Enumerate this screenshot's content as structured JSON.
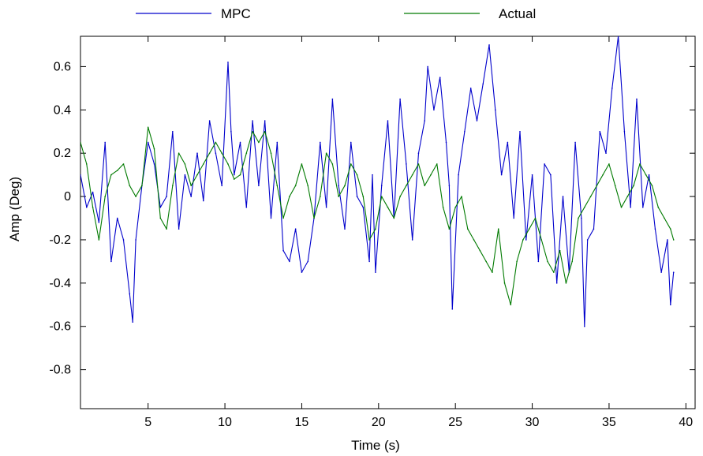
{
  "chart_data": {
    "type": "line",
    "xlabel": "Time (s)",
    "ylabel": "Amp (Deg)",
    "xlim": [
      0.6,
      40.6
    ],
    "ylim": [
      -0.98,
      0.74
    ],
    "x_ticks": [
      5,
      10,
      15,
      20,
      25,
      30,
      35,
      40
    ],
    "x_tick_labels": [
      "5",
      "10",
      "15",
      "20",
      "25",
      "30",
      "35",
      "40"
    ],
    "y_ticks": [
      -0.8,
      -0.6,
      -0.4,
      -0.2,
      0,
      0.2,
      0.4,
      0.6
    ],
    "y_tick_labels": [
      "-0.8",
      "-0.6",
      "-0.4",
      "-0.2",
      "0",
      "0.2",
      "0.4",
      "0.6"
    ],
    "grid": false,
    "legend_position": "top-outside",
    "series": [
      {
        "name": "MPC",
        "color": "#0000cc",
        "x": [
          0.6,
          1.0,
          1.4,
          1.8,
          2.2,
          2.6,
          3.0,
          3.4,
          3.8,
          4.0,
          4.2,
          4.6,
          5.0,
          5.4,
          5.8,
          6.2,
          6.6,
          7.0,
          7.4,
          7.8,
          8.2,
          8.6,
          9.0,
          9.4,
          9.8,
          10.2,
          10.4,
          10.6,
          11.0,
          11.4,
          11.8,
          12.2,
          12.6,
          13.0,
          13.4,
          13.8,
          14.2,
          14.6,
          15.0,
          15.4,
          15.8,
          16.2,
          16.6,
          17.0,
          17.4,
          17.8,
          18.2,
          18.6,
          19.0,
          19.4,
          19.6,
          19.8,
          20.2,
          20.6,
          21.0,
          21.4,
          21.8,
          22.2,
          22.6,
          23.0,
          23.2,
          23.6,
          24.0,
          24.4,
          24.6,
          24.8,
          25.2,
          25.6,
          26.0,
          26.4,
          26.8,
          27.2,
          27.6,
          28.0,
          28.4,
          28.8,
          29.2,
          29.6,
          30.0,
          30.4,
          30.8,
          31.2,
          31.6,
          32.0,
          32.4,
          32.8,
          33.2,
          33.4,
          33.6,
          34.0,
          34.4,
          34.8,
          35.2,
          35.6,
          36.0,
          36.4,
          36.8,
          37.2,
          37.6,
          38.0,
          38.4,
          38.8,
          39.0,
          39.2
        ],
        "values": [
          0.1,
          -0.05,
          0.02,
          -0.12,
          0.25,
          -0.3,
          -0.1,
          -0.2,
          -0.45,
          -0.58,
          -0.2,
          0.05,
          0.25,
          0.15,
          -0.05,
          0.0,
          0.3,
          -0.15,
          0.1,
          0.0,
          0.2,
          -0.02,
          0.35,
          0.2,
          0.05,
          0.62,
          0.3,
          0.1,
          0.25,
          -0.05,
          0.35,
          0.05,
          0.35,
          -0.1,
          0.25,
          -0.25,
          -0.3,
          -0.15,
          -0.35,
          -0.3,
          -0.1,
          0.25,
          -0.05,
          0.45,
          0.05,
          -0.15,
          0.25,
          0.0,
          -0.05,
          -0.3,
          0.1,
          -0.35,
          0.05,
          0.35,
          -0.1,
          0.45,
          0.15,
          -0.2,
          0.2,
          0.35,
          0.6,
          0.4,
          0.55,
          0.25,
          0.05,
          -0.52,
          0.1,
          0.3,
          0.5,
          0.35,
          0.52,
          0.7,
          0.4,
          0.1,
          0.25,
          -0.1,
          0.3,
          -0.2,
          0.1,
          -0.3,
          0.15,
          0.1,
          -0.4,
          0.0,
          -0.35,
          0.25,
          -0.1,
          -0.6,
          -0.2,
          -0.15,
          0.3,
          0.2,
          0.5,
          0.74,
          0.3,
          -0.05,
          0.45,
          -0.05,
          0.1,
          -0.15,
          -0.35,
          -0.2,
          -0.5,
          -0.35
        ]
      },
      {
        "name": "Actual",
        "color": "#007a00",
        "x": [
          0.6,
          1.0,
          1.4,
          1.8,
          2.2,
          2.6,
          3.0,
          3.4,
          3.8,
          4.2,
          4.6,
          5.0,
          5.4,
          5.8,
          6.2,
          6.6,
          7.0,
          7.4,
          7.8,
          8.2,
          8.6,
          9.0,
          9.4,
          9.8,
          10.2,
          10.6,
          11.0,
          11.4,
          11.8,
          12.2,
          12.6,
          13.0,
          13.4,
          13.8,
          14.2,
          14.6,
          15.0,
          15.4,
          15.8,
          16.2,
          16.6,
          17.0,
          17.4,
          17.8,
          18.2,
          18.6,
          19.0,
          19.4,
          19.8,
          20.2,
          20.6,
          21.0,
          21.4,
          21.8,
          22.2,
          22.6,
          23.0,
          23.4,
          23.8,
          24.2,
          24.6,
          25.0,
          25.4,
          25.8,
          26.2,
          26.6,
          27.0,
          27.4,
          27.8,
          28.2,
          28.6,
          29.0,
          29.4,
          29.8,
          30.2,
          30.6,
          31.0,
          31.4,
          31.8,
          32.2,
          32.6,
          33.0,
          33.4,
          33.8,
          34.2,
          34.6,
          35.0,
          35.4,
          35.8,
          36.2,
          36.6,
          37.0,
          37.4,
          37.8,
          38.2,
          38.6,
          39.0,
          39.2
        ],
        "values": [
          0.25,
          0.15,
          -0.05,
          -0.2,
          0.0,
          0.1,
          0.12,
          0.15,
          0.05,
          0.0,
          0.05,
          0.32,
          0.22,
          -0.1,
          -0.15,
          0.05,
          0.2,
          0.15,
          0.05,
          0.1,
          0.15,
          0.2,
          0.25,
          0.2,
          0.15,
          0.08,
          0.1,
          0.2,
          0.3,
          0.25,
          0.3,
          0.2,
          0.05,
          -0.1,
          0.0,
          0.05,
          0.15,
          0.05,
          -0.1,
          0.0,
          0.2,
          0.15,
          0.0,
          0.05,
          0.15,
          0.1,
          0.0,
          -0.2,
          -0.15,
          0.0,
          -0.05,
          -0.1,
          0.0,
          0.05,
          0.1,
          0.15,
          0.05,
          0.1,
          0.15,
          -0.05,
          -0.15,
          -0.05,
          0.0,
          -0.15,
          -0.2,
          -0.25,
          -0.3,
          -0.35,
          -0.15,
          -0.4,
          -0.5,
          -0.3,
          -0.2,
          -0.15,
          -0.1,
          -0.2,
          -0.3,
          -0.35,
          -0.25,
          -0.4,
          -0.3,
          -0.1,
          -0.05,
          0.0,
          0.05,
          0.1,
          0.15,
          0.05,
          -0.05,
          0.0,
          0.05,
          0.15,
          0.1,
          0.05,
          -0.05,
          -0.1,
          -0.15,
          -0.2
        ]
      }
    ]
  }
}
